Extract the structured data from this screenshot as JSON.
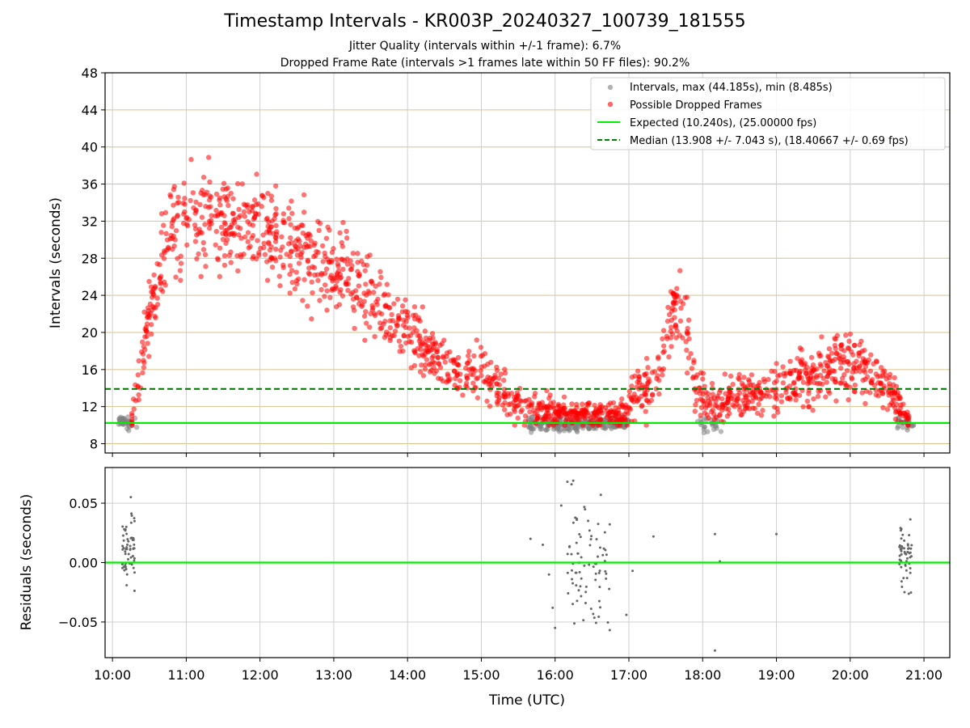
{
  "title": "Timestamp Intervals - KR003P_20240327_100739_181555",
  "subtitle_lines": [
    "Jitter Quality (intervals within +/-1 frame): 6.7%",
    "Dropped Frame Rate (intervals >1 frames late within 50 FF files): 90.2%"
  ],
  "chart_data": [
    {
      "type": "scatter",
      "ylabel": "Intervals (seconds)",
      "ylim": [
        7,
        48
      ],
      "yticks": [
        8,
        12,
        16,
        20,
        24,
        28,
        32,
        36,
        40,
        44,
        48
      ],
      "xlim_hours": [
        9.9,
        21.35
      ],
      "legend_position": "top-right",
      "series": [
        {
          "name": "Intervals, max (44.185s), min (8.485s)",
          "color": "#808080",
          "clusters": [
            {
              "t_start": "10:05",
              "t_end": "10:20",
              "y_mean": 10.3,
              "y_sd": 0.45,
              "n": 40
            },
            {
              "t_start": "15:38",
              "t_end": "16:35",
              "y_mean": 10.1,
              "y_sd": 0.55,
              "n": 160
            },
            {
              "t_start": "16:35",
              "t_end": "17:00",
              "y_mean": 10.2,
              "y_sd": 0.5,
              "n": 70
            },
            {
              "t_start": "17:55",
              "t_end": "18:15",
              "y_mean": 10.2,
              "y_sd": 0.6,
              "n": 25
            },
            {
              "t_start": "20:38",
              "t_end": "20:52",
              "y_mean": 10.2,
              "y_sd": 0.45,
              "n": 30
            }
          ]
        },
        {
          "name": "Possible Dropped Frames",
          "color": "#ff0000",
          "trend": [
            {
              "t": "10:15",
              "y": 11.0,
              "sd": 1.0
            },
            {
              "t": "10:22",
              "y": 14.0,
              "sd": 2.0
            },
            {
              "t": "10:30",
              "y": 22.0,
              "sd": 3.0
            },
            {
              "t": "10:45",
              "y": 30.0,
              "sd": 4.5
            },
            {
              "t": "11:00",
              "y": 32.0,
              "sd": 3.5
            },
            {
              "t": "11:30",
              "y": 31.5,
              "sd": 3.5
            },
            {
              "t": "12:00",
              "y": 31.0,
              "sd": 3.5
            },
            {
              "t": "12:30",
              "y": 29.5,
              "sd": 3.5
            },
            {
              "t": "13:00",
              "y": 27.5,
              "sd": 3.0
            },
            {
              "t": "13:30",
              "y": 23.5,
              "sd": 2.5
            },
            {
              "t": "14:00",
              "y": 20.5,
              "sd": 2.2
            },
            {
              "t": "14:20",
              "y": 17.5,
              "sd": 2.0
            },
            {
              "t": "14:40",
              "y": 15.5,
              "sd": 1.7
            },
            {
              "t": "15:00",
              "y": 16.0,
              "sd": 1.8
            },
            {
              "t": "15:20",
              "y": 13.0,
              "sd": 1.5
            },
            {
              "t": "15:45",
              "y": 11.5,
              "sd": 1.2
            },
            {
              "t": "16:30",
              "y": 11.0,
              "sd": 0.9
            },
            {
              "t": "16:50",
              "y": 11.0,
              "sd": 1.0
            },
            {
              "t": "17:00",
              "y": 12.0,
              "sd": 1.5
            },
            {
              "t": "17:10",
              "y": 14.0,
              "sd": 2.0
            },
            {
              "t": "17:20",
              "y": 14.0,
              "sd": 2.0
            },
            {
              "t": "17:30",
              "y": 18.0,
              "sd": 2.0
            },
            {
              "t": "17:38",
              "y": 23.0,
              "sd": 2.5
            },
            {
              "t": "17:45",
              "y": 21.0,
              "sd": 2.2
            },
            {
              "t": "17:55",
              "y": 14.0,
              "sd": 2.0
            },
            {
              "t": "18:05",
              "y": 12.0,
              "sd": 1.5
            },
            {
              "t": "18:30",
              "y": 13.0,
              "sd": 1.5
            },
            {
              "t": "19:00",
              "y": 14.0,
              "sd": 2.0
            },
            {
              "t": "19:30",
              "y": 15.5,
              "sd": 2.2
            },
            {
              "t": "19:50",
              "y": 17.0,
              "sd": 2.2
            },
            {
              "t": "20:10",
              "y": 16.5,
              "sd": 2.2
            },
            {
              "t": "20:30",
              "y": 14.0,
              "sd": 1.8
            },
            {
              "t": "20:40",
              "y": 12.0,
              "sd": 1.2
            },
            {
              "t": "20:48",
              "y": 10.5,
              "sd": 0.5
            }
          ],
          "n": 1700
        },
        {
          "name": "Expected (10.240s), (25.00000 fps)",
          "color": "#00ee00",
          "value": 10.24,
          "style": "solid"
        },
        {
          "name": "Median (13.908 +/- 7.043 s), (18.40667 +/- 0.69 fps)",
          "color": "#007f00",
          "value": 13.908,
          "style": "dashed"
        }
      ]
    },
    {
      "type": "scatter",
      "ylabel": "Residuals (seconds)",
      "xlabel": "Time (UTC)",
      "ylim": [
        -0.08,
        0.08
      ],
      "yticks": [
        -0.05,
        0.0,
        0.05
      ],
      "ytick_labels": [
        "−0.05",
        "0.00",
        "0.05"
      ],
      "xticks": [
        "10:00",
        "11:00",
        "12:00",
        "13:00",
        "14:00",
        "15:00",
        "16:00",
        "17:00",
        "18:00",
        "19:00",
        "20:00",
        "21:00"
      ],
      "series": [
        {
          "name": "residuals",
          "color": "#666666",
          "clusters": [
            {
              "t_start": "10:08",
              "t_end": "10:18",
              "y_mean": 0.01,
              "y_sd": 0.022,
              "n": 60
            },
            {
              "t_start": "16:10",
              "t_end": "16:45",
              "y_mean": 0.0,
              "y_sd": 0.038,
              "n": 80
            },
            {
              "t_start": "20:40",
              "t_end": "20:50",
              "y_mean": 0.005,
              "y_sd": 0.02,
              "n": 55
            }
          ],
          "points": [
            {
              "t": "15:40",
              "y": 0.02
            },
            {
              "t": "15:50",
              "y": 0.015
            },
            {
              "t": "15:55",
              "y": -0.01
            },
            {
              "t": "15:58",
              "y": -0.038
            },
            {
              "t": "16:00",
              "y": -0.055
            },
            {
              "t": "16:05",
              "y": 0.048
            },
            {
              "t": "16:10",
              "y": 0.068
            },
            {
              "t": "17:20",
              "y": 0.022
            },
            {
              "t": "18:10",
              "y": 0.024
            },
            {
              "t": "18:10",
              "y": -0.074
            },
            {
              "t": "18:14",
              "y": 0.001
            },
            {
              "t": "19:00",
              "y": 0.024
            },
            {
              "t": "16:58",
              "y": -0.044
            },
            {
              "t": "17:03",
              "y": -0.007
            }
          ]
        },
        {
          "name": "zero",
          "color": "#00ee00",
          "value": 0.0,
          "style": "solid"
        }
      ]
    }
  ]
}
